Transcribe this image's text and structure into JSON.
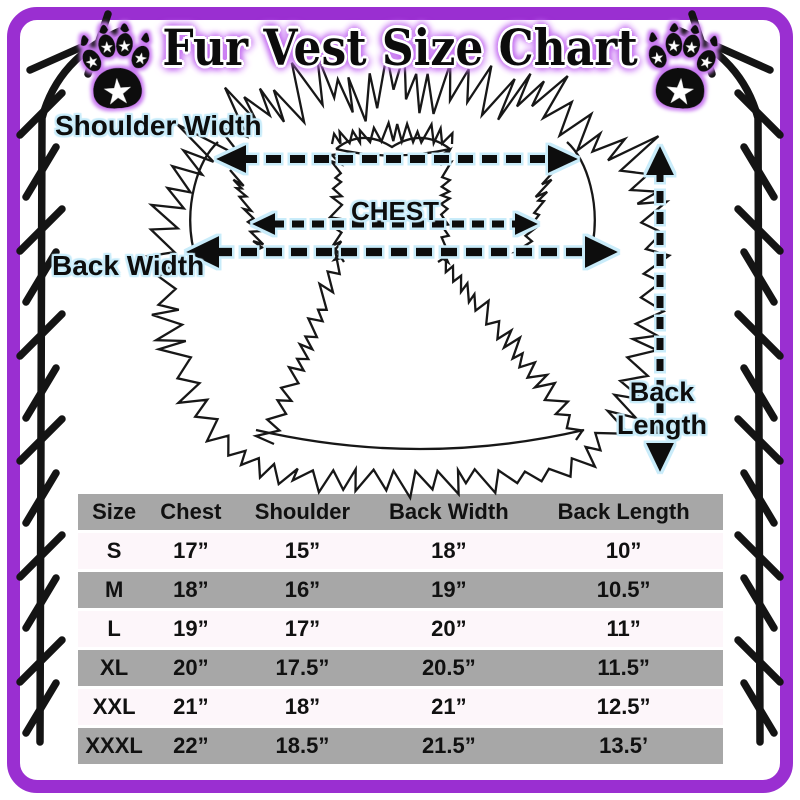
{
  "title": "Fur Vest Size Chart",
  "frame": {
    "border_color": "#9a2fd1",
    "title_glow_color": "#c97af2",
    "stitch_color": "#141414"
  },
  "icons": {
    "left_paw": "paw-print-with-stars",
    "right_paw": "paw-print-with-stars"
  },
  "diagram": {
    "shoulder_width_label": "Shoulder Width",
    "chest_label": "CHEST",
    "back_width_label": "Back Width",
    "back_length_label_line1": "Back",
    "back_length_label_line2": "Length",
    "halo_color": "#c9ecfa",
    "arrow_color": "#111111"
  },
  "chart_data": {
    "type": "table",
    "title": "Fur Vest Size Chart",
    "columns": [
      "Size",
      "Chest",
      "Shoulder",
      "Back Width",
      "Back Length"
    ],
    "rows": [
      [
        "S",
        "17”",
        "15”",
        "18”",
        "10”"
      ],
      [
        "M",
        "18”",
        "16”",
        "19”",
        "10.5”"
      ],
      [
        "L",
        "19”",
        "17”",
        "20”",
        "11”"
      ],
      [
        "XL",
        "20”",
        "17.5”",
        "20.5”",
        "11.5”"
      ],
      [
        "XXL",
        "21”",
        "18”",
        "21”",
        "12.5”"
      ],
      [
        "XXXL",
        "22”",
        "18.5”",
        "21.5”",
        "13.5’"
      ]
    ],
    "header_bg": "#a7a7a7",
    "alt_row_bg": "#a7a7a7",
    "light_row_bg": "#fdf6fa"
  }
}
